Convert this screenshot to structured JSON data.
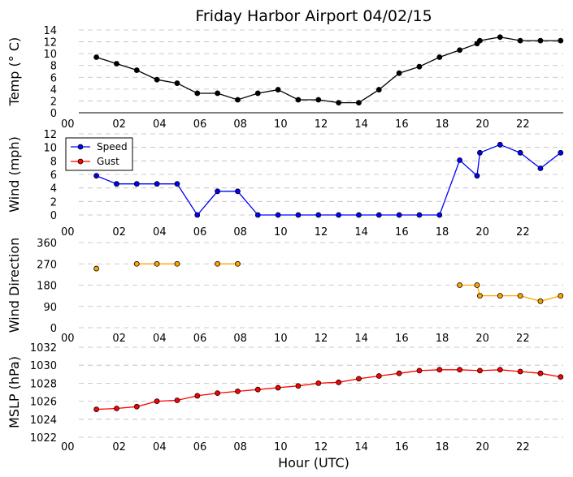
{
  "title": "Friday Harbor Airport 04/02/15",
  "xlabel": "Hour (UTC)",
  "colors": {
    "temp": "#000000",
    "speed": "#0000ff",
    "gust": "#ff0000",
    "direction": "#ffa500",
    "mslp": "#ff0000",
    "grid": "#bbbbbb"
  },
  "chart_data": [
    {
      "type": "line",
      "ylabel": "Temp ($^\\circ$C)",
      "ylabel_display": "Temp (° C)",
      "xlim": [
        0,
        24
      ],
      "ylim": [
        0,
        14
      ],
      "xticks": [
        0,
        2,
        4,
        6,
        8,
        10,
        12,
        14,
        16,
        18,
        20,
        22
      ],
      "xtick_labels": [
        "00",
        "02",
        "04",
        "06",
        "08",
        "10",
        "12",
        "14",
        "16",
        "18",
        "20",
        "22"
      ],
      "yticks": [
        0,
        2,
        4,
        6,
        8,
        10,
        12,
        14
      ],
      "grid": true,
      "series": [
        {
          "color": "#000000",
          "x": [
            0.87,
            1.87,
            2.87,
            3.87,
            4.87,
            5.87,
            6.87,
            7.87,
            8.87,
            9.87,
            10.87,
            11.87,
            12.87,
            13.87,
            14.87,
            15.87,
            16.87,
            17.87,
            18.87,
            19.73,
            19.87,
            20.87,
            21.87,
            22.87,
            23.87
          ],
          "y": [
            9.4,
            8.3,
            7.2,
            5.6,
            5.0,
            3.3,
            3.3,
            2.2,
            3.3,
            3.9,
            2.2,
            2.2,
            1.7,
            1.7,
            3.9,
            6.7,
            7.8,
            9.4,
            10.6,
            11.7,
            12.2,
            12.8,
            12.2,
            12.2,
            12.2
          ]
        }
      ]
    },
    {
      "type": "line",
      "ylabel": "Wind (mph)",
      "xlim": [
        0,
        24
      ],
      "ylim": [
        0,
        12
      ],
      "xticks": [
        0,
        2,
        4,
        6,
        8,
        10,
        12,
        14,
        16,
        18,
        20,
        22
      ],
      "xtick_labels": [
        "00",
        "02",
        "04",
        "06",
        "08",
        "10",
        "12",
        "14",
        "16",
        "18",
        "20",
        "22"
      ],
      "yticks": [
        0,
        2,
        4,
        6,
        8,
        10,
        12
      ],
      "grid": true,
      "legend": "upper-left",
      "series": [
        {
          "name": "Speed",
          "color": "#0000ff",
          "x": [
            0.87,
            1.87,
            2.87,
            3.87,
            4.87,
            5.87,
            6.87,
            7.87,
            8.87,
            9.87,
            10.87,
            11.87,
            12.87,
            13.87,
            14.87,
            15.87,
            16.87,
            17.87,
            18.87,
            19.73,
            19.87,
            20.87,
            21.87,
            22.87,
            23.87
          ],
          "y": [
            5.8,
            4.6,
            4.6,
            4.6,
            4.6,
            0,
            3.5,
            3.5,
            0,
            0,
            0,
            0,
            0,
            0,
            0,
            0,
            0,
            0,
            8.1,
            5.8,
            9.2,
            10.4,
            9.2,
            6.9,
            9.2
          ]
        },
        {
          "name": "Gust",
          "color": "#ff0000",
          "x": [],
          "y": []
        }
      ]
    },
    {
      "type": "line",
      "ylabel": "Wind Direction",
      "xlim": [
        0,
        24
      ],
      "ylim": [
        0,
        360
      ],
      "xticks": [
        0,
        2,
        4,
        6,
        8,
        10,
        12,
        14,
        16,
        18,
        20,
        22
      ],
      "xtick_labels": [
        "00",
        "02",
        "04",
        "06",
        "08",
        "10",
        "12",
        "14",
        "16",
        "18",
        "20",
        "22"
      ],
      "yticks": [
        0,
        90,
        180,
        270,
        360
      ],
      "grid": true,
      "series": [
        {
          "color": "#ffa500",
          "x": [
            0.87,
            1.87,
            2.87,
            3.87,
            4.87,
            5.87,
            6.87,
            7.87,
            8.87,
            9.87,
            10.87,
            11.87,
            12.87,
            13.87,
            14.87,
            15.87,
            16.87,
            17.87,
            18.87,
            19.73,
            19.87,
            20.87,
            21.87,
            22.87,
            23.87
          ],
          "y": [
            250,
            null,
            270,
            270,
            270,
            null,
            270,
            270,
            null,
            null,
            null,
            null,
            null,
            null,
            null,
            null,
            null,
            null,
            180,
            180,
            135,
            135,
            135,
            112,
            135
          ]
        }
      ]
    },
    {
      "type": "line",
      "ylabel": "MSLP (hPa)",
      "xlim": [
        0,
        24
      ],
      "ylim": [
        1022,
        1032
      ],
      "xticks": [
        0,
        2,
        4,
        6,
        8,
        10,
        12,
        14,
        16,
        18,
        20,
        22
      ],
      "xtick_labels": [
        "00",
        "02",
        "04",
        "06",
        "08",
        "10",
        "12",
        "14",
        "16",
        "18",
        "20",
        "22"
      ],
      "yticks": [
        1022,
        1024,
        1026,
        1028,
        1030,
        1032
      ],
      "grid": true,
      "series": [
        {
          "color": "#ff0000",
          "x": [
            0.87,
            1.87,
            2.87,
            3.87,
            4.87,
            5.87,
            6.87,
            7.87,
            8.87,
            9.87,
            10.87,
            11.87,
            12.87,
            13.87,
            14.87,
            15.87,
            16.87,
            17.87,
            18.87,
            19.87,
            20.87,
            21.87,
            22.87,
            23.87
          ],
          "y": [
            1025.1,
            1025.2,
            1025.4,
            1026.0,
            1026.1,
            1026.6,
            1026.9,
            1027.1,
            1027.3,
            1027.5,
            1027.7,
            1028.0,
            1028.1,
            1028.5,
            1028.8,
            1029.1,
            1029.4,
            1029.5,
            1029.5,
            1029.4,
            1029.5,
            1029.3,
            1029.1,
            1028.7
          ]
        }
      ]
    }
  ]
}
